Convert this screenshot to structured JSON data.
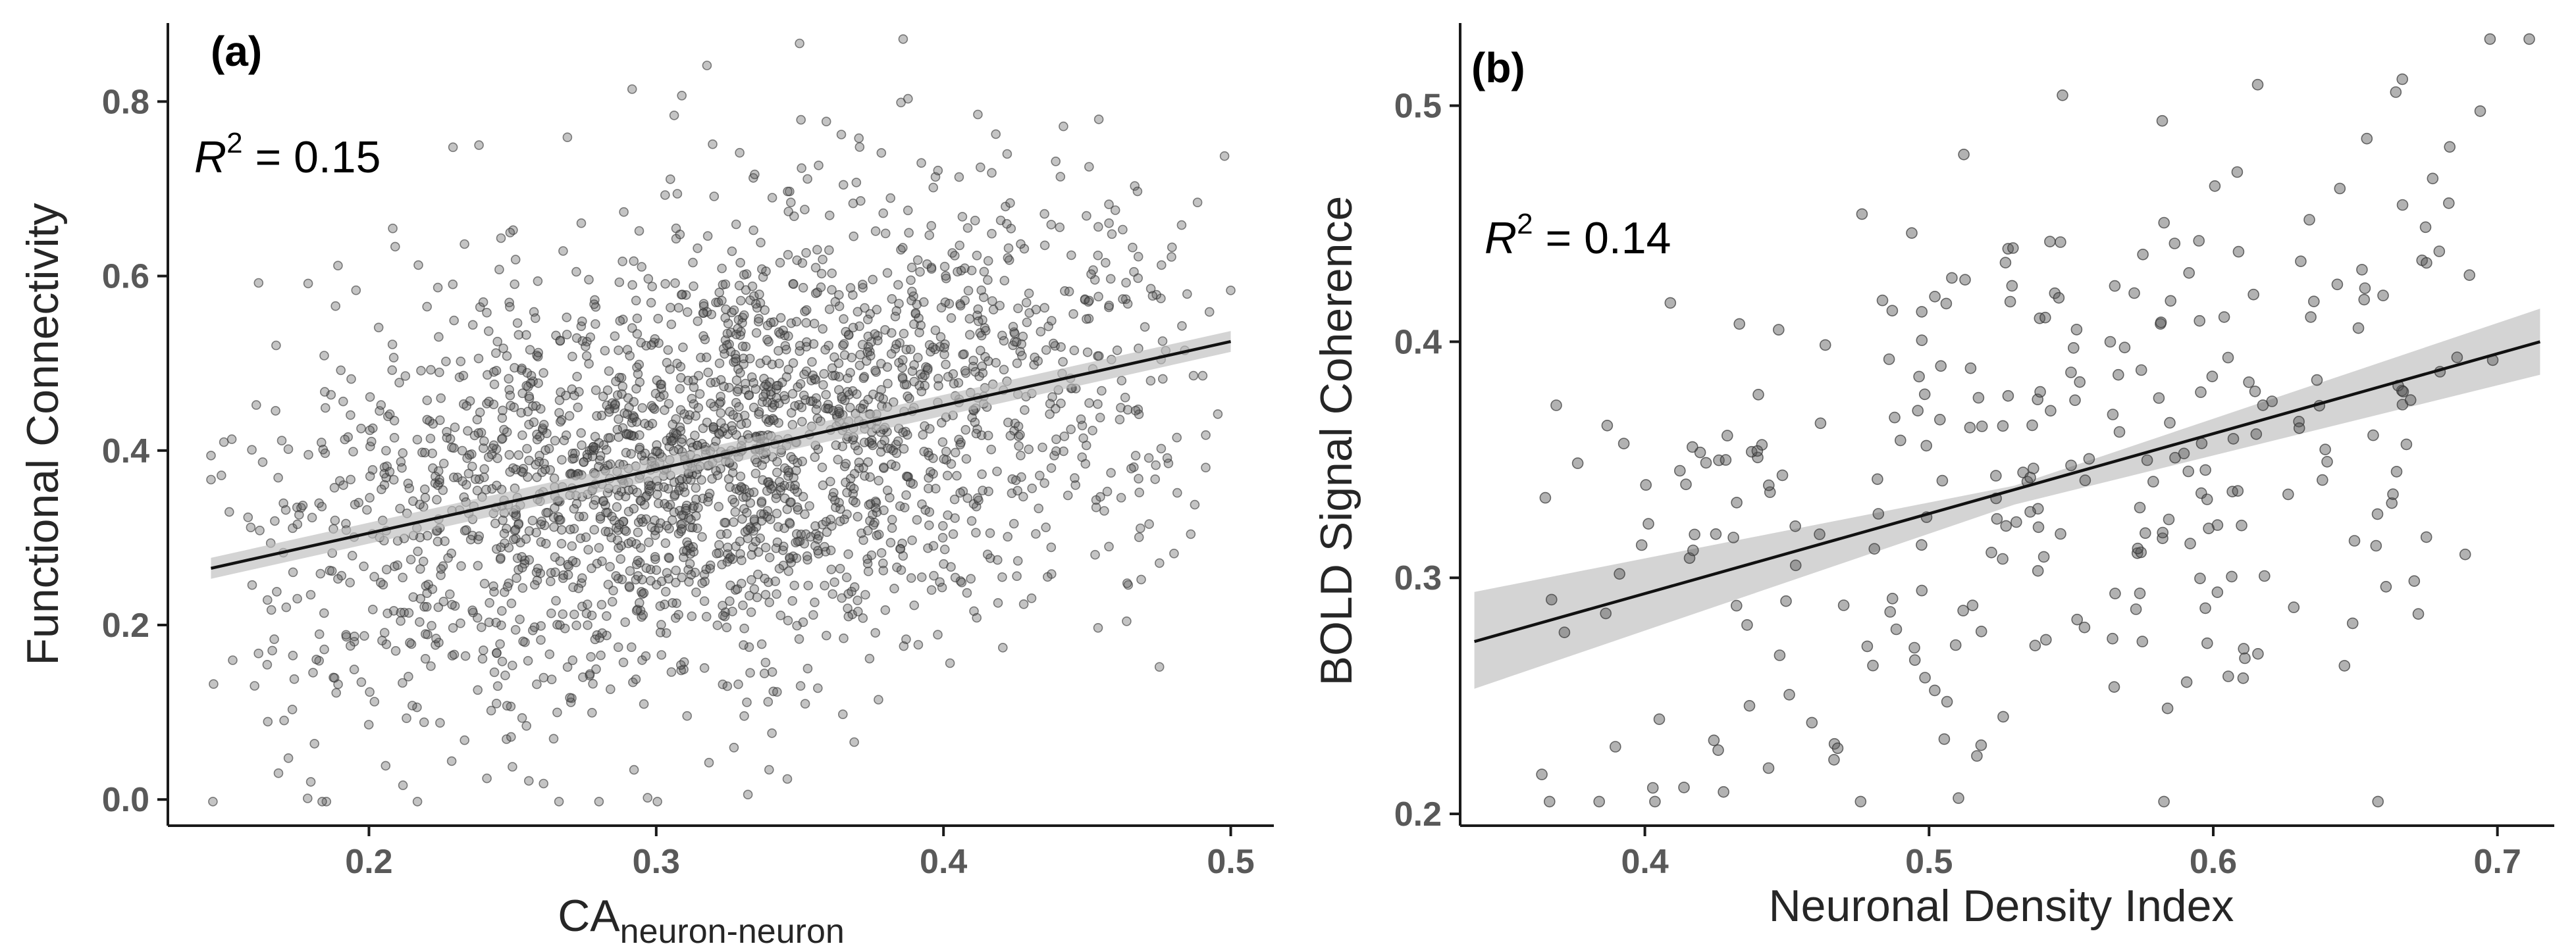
{
  "chart_data": [
    {
      "type": "scatter",
      "panel": "(a)",
      "xlabel_main": "CA",
      "xlabel_sub": "neuron-neuron",
      "ylabel": "Functional Connectivity",
      "xlim": [
        0.13,
        0.515
      ],
      "ylim": [
        -0.03,
        0.89
      ],
      "xticks": [
        0.2,
        0.3,
        0.4,
        0.5
      ],
      "xtick_labels": [
        "0.2",
        "0.3",
        "0.4",
        "0.5"
      ],
      "yticks": [
        0.0,
        0.2,
        0.4,
        0.6,
        0.8
      ],
      "ytick_labels": [
        "0.0",
        "0.2",
        "0.4",
        "0.6",
        "0.8"
      ],
      "annotation": {
        "R": "R",
        "sup": "2",
        "text": " = 0.15",
        "value": 0.15
      },
      "fit": {
        "x": [
          0.145,
          0.5
        ],
        "y": [
          0.265,
          0.525
        ]
      },
      "ci": {
        "x": [
          0.145,
          0.5
        ],
        "lower": [
          0.253,
          0.513
        ],
        "upper": [
          0.277,
          0.537
        ]
      },
      "n_points": 2400,
      "point_alpha": 0.35,
      "point_color": "#555555",
      "spread": {
        "x_range": [
          0.145,
          0.5
        ],
        "x_mode": 0.33,
        "y_mean_at_x": "fit",
        "y_sd": 0.13
      }
    },
    {
      "type": "scatter",
      "panel": "(b)",
      "xlabel": "Neuronal Density Index",
      "ylabel": "BOLD Signal Coherence",
      "xlim": [
        0.335,
        0.72
      ],
      "ylim": [
        0.195,
        0.535
      ],
      "xticks": [
        0.4,
        0.5,
        0.6,
        0.7
      ],
      "xtick_labels": [
        "0.4",
        "0.5",
        "0.6",
        "0.7"
      ],
      "yticks": [
        0.2,
        0.3,
        0.4,
        0.5
      ],
      "ytick_labels": [
        "0.2",
        "0.3",
        "0.4",
        "0.5"
      ],
      "annotation": {
        "R": "R",
        "sup": "2",
        "text": " = 0.14",
        "value": 0.14
      },
      "fit": {
        "x": [
          0.34,
          0.715
        ],
        "y": [
          0.273,
          0.4
        ]
      },
      "ci": {
        "x": [
          0.34,
          0.53,
          0.715
        ],
        "lower": [
          0.253,
          0.331,
          0.386
        ],
        "upper": [
          0.294,
          0.339,
          0.414
        ]
      },
      "n_points": 300,
      "point_alpha": 0.45,
      "point_color": "#555555",
      "spread": {
        "x_range": [
          0.34,
          0.715
        ],
        "x_mode": 0.6,
        "y_mean_at_x": "fit",
        "y_sd": 0.06
      }
    }
  ]
}
